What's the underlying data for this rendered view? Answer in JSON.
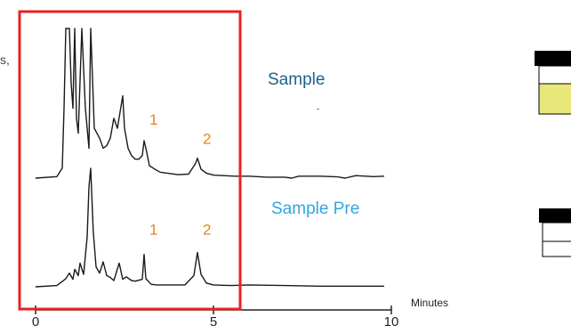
{
  "page_fragment": {
    "clipped_text": "s,"
  },
  "colors": {
    "trace": "#1a1a1a",
    "peak_label": "#e8821e",
    "sample_title": "#1f5f8b",
    "sample_pre_title": "#2ea8e0",
    "highlight_box": "#e52320",
    "vial_fill": "#e8e87a",
    "vial_cap": "#000000"
  },
  "chart_data": {
    "type": "line",
    "title": "",
    "xlabel": "Minutes",
    "ylabel": "",
    "xlim": [
      0,
      10
    ],
    "x_ticks": [
      0,
      5,
      10
    ],
    "x_tick_labels": [
      "0",
      "5",
      "10"
    ],
    "grid": false,
    "highlight_region_minutes": [
      0,
      5.75
    ],
    "series": [
      {
        "name": "Sample",
        "label_color": "#1f5f8b",
        "x": [
          0,
          0.6,
          0.75,
          0.8,
          0.85,
          0.95,
          1.0,
          1.05,
          1.1,
          1.15,
          1.2,
          1.3,
          1.4,
          1.5,
          1.55,
          1.65,
          1.8,
          1.9,
          2.0,
          2.1,
          2.2,
          2.3,
          2.45,
          2.5,
          2.6,
          2.7,
          2.8,
          2.9,
          3.0,
          3.05,
          3.1,
          3.2,
          3.35,
          3.5,
          3.7,
          4.0,
          4.3,
          4.5,
          4.55,
          4.65,
          4.8,
          5.0,
          5.3,
          5.6,
          5.8,
          6.0,
          6.5,
          7.0,
          7.2,
          7.4,
          8.0,
          8.5,
          8.7,
          9.0,
          9.5,
          9.8
        ],
        "y": [
          0.0,
          0.3,
          2.0,
          14.0,
          30.0,
          30.0,
          19.0,
          14.0,
          30.0,
          12.0,
          9.0,
          30.0,
          14.0,
          6.0,
          30.0,
          10.0,
          8.0,
          6.0,
          6.5,
          8.0,
          12.0,
          10.0,
          16.5,
          10.0,
          6.0,
          4.5,
          3.8,
          3.8,
          4.5,
          7.5,
          6.0,
          2.5,
          1.8,
          1.2,
          1.0,
          0.7,
          0.8,
          3.0,
          4.0,
          1.8,
          1.0,
          0.6,
          0.5,
          0.4,
          0.4,
          0.4,
          0.2,
          0.2,
          0.0,
          0.4,
          0.4,
          0.25,
          0.0,
          0.5,
          0.3,
          0.4
        ],
        "peak_labels": [
          {
            "text": "1",
            "x": 3.05
          },
          {
            "text": "2",
            "x": 4.55
          }
        ]
      },
      {
        "name": "Sample Pre",
        "label_color": "#2ea8e0",
        "x": [
          0,
          0.6,
          0.85,
          0.95,
          1.05,
          1.1,
          1.2,
          1.25,
          1.35,
          1.45,
          1.5,
          1.55,
          1.62,
          1.7,
          1.8,
          1.9,
          2.0,
          2.1,
          2.2,
          2.35,
          2.45,
          2.55,
          2.7,
          2.8,
          3.0,
          3.05,
          3.1,
          3.25,
          3.4,
          3.5,
          3.8,
          4.2,
          4.45,
          4.55,
          4.65,
          4.8,
          5.0,
          5.5,
          6.0,
          7.0,
          8.0,
          9.0,
          9.8
        ],
        "y": [
          0.0,
          0.2,
          1.3,
          2.2,
          1.2,
          2.8,
          1.8,
          3.8,
          2.0,
          8.0,
          16.0,
          19.0,
          9.0,
          3.2,
          2.2,
          4.0,
          1.8,
          1.5,
          1.0,
          3.8,
          1.2,
          1.6,
          1.0,
          0.9,
          1.2,
          5.2,
          1.3,
          0.4,
          0.3,
          0.3,
          0.3,
          0.3,
          1.8,
          5.5,
          2.0,
          0.6,
          0.3,
          0.2,
          0.3,
          0.2,
          0.1,
          0.1,
          0.1
        ],
        "peak_labels": [
          {
            "text": "1",
            "x": 3.05
          },
          {
            "text": "2",
            "x": 4.55
          }
        ]
      }
    ]
  }
}
